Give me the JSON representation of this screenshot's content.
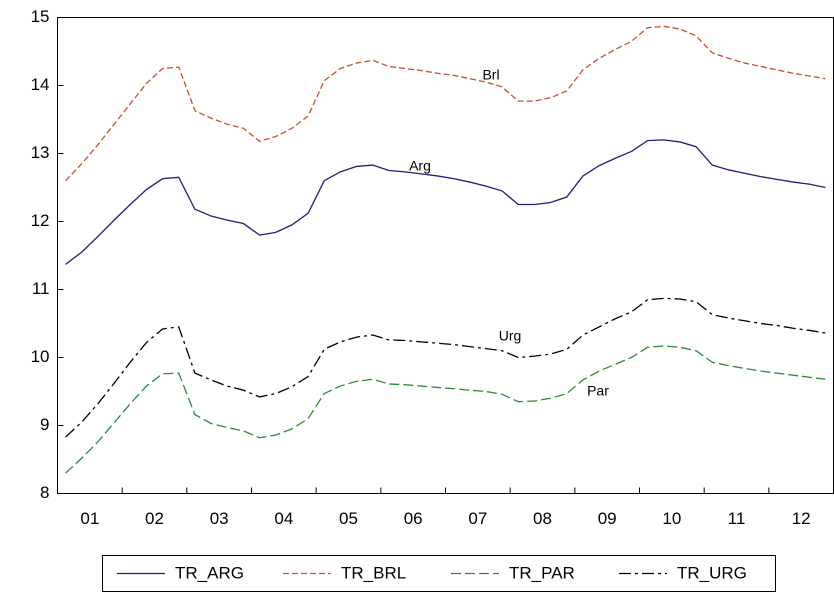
{
  "chart_data": {
    "type": "line",
    "categories": [
      null,
      "01",
      null,
      null,
      null,
      "02",
      null,
      null,
      null,
      "03",
      null,
      null,
      null,
      "04",
      null,
      null,
      null,
      "05",
      null,
      null,
      null,
      "06",
      null,
      null,
      null,
      "07",
      null,
      null,
      null,
      "08",
      null,
      null,
      null,
      "09",
      null,
      null,
      null,
      "10",
      null,
      null,
      null,
      "11",
      null,
      null,
      null,
      "12",
      null,
      null
    ],
    "series": [
      {
        "name": "TR_ARG",
        "color": "#1f1f78",
        "values": [
          11.37,
          11.55,
          11.78,
          12.02,
          12.25,
          12.47,
          12.63,
          12.65,
          12.18,
          12.08,
          12.02,
          11.97,
          11.8,
          11.84,
          11.95,
          12.12,
          12.6,
          12.73,
          12.81,
          12.83,
          12.75,
          12.73,
          12.7,
          12.67,
          12.63,
          12.58,
          12.52,
          12.45,
          12.25,
          12.25,
          12.28,
          12.36,
          12.67,
          12.82,
          12.93,
          13.03,
          13.19,
          13.2,
          13.17,
          13.1,
          12.83,
          12.76,
          12.71,
          12.66,
          12.62,
          12.58,
          12.55,
          12.5
        ]
      },
      {
        "name": "TR_BRL",
        "color": "#c8502a",
        "values": [
          12.6,
          12.85,
          13.13,
          13.43,
          13.73,
          14.03,
          14.25,
          14.27,
          13.63,
          13.52,
          13.43,
          13.37,
          13.18,
          13.25,
          13.37,
          13.55,
          14.07,
          14.25,
          14.33,
          14.37,
          14.28,
          14.25,
          14.22,
          14.18,
          14.15,
          14.1,
          14.05,
          13.98,
          13.77,
          13.77,
          13.82,
          13.92,
          14.23,
          14.4,
          14.53,
          14.65,
          14.85,
          14.87,
          14.83,
          14.73,
          14.48,
          14.4,
          14.33,
          14.28,
          14.23,
          14.18,
          14.14,
          14.1
        ]
      },
      {
        "name": "TR_PAR",
        "color": "#2e8b3a",
        "values": [
          8.3,
          8.52,
          8.76,
          9.04,
          9.32,
          9.58,
          9.76,
          9.77,
          9.16,
          9.03,
          8.97,
          8.92,
          8.82,
          8.86,
          8.95,
          9.1,
          9.47,
          9.58,
          9.65,
          9.68,
          9.61,
          9.6,
          9.58,
          9.56,
          9.54,
          9.52,
          9.5,
          9.46,
          9.35,
          9.36,
          9.4,
          9.47,
          9.67,
          9.8,
          9.9,
          10.0,
          10.15,
          10.17,
          10.15,
          10.1,
          9.93,
          9.88,
          9.84,
          9.8,
          9.77,
          9.74,
          9.71,
          9.68
        ]
      },
      {
        "name": "TR_URG",
        "color": "#000000",
        "values": [
          8.83,
          9.05,
          9.32,
          9.62,
          9.93,
          10.22,
          10.42,
          10.45,
          9.77,
          9.67,
          9.58,
          9.52,
          9.42,
          9.47,
          9.57,
          9.72,
          10.12,
          10.23,
          10.3,
          10.33,
          10.26,
          10.25,
          10.23,
          10.21,
          10.19,
          10.16,
          10.13,
          10.1,
          10.0,
          10.02,
          10.05,
          10.12,
          10.33,
          10.45,
          10.57,
          10.67,
          10.85,
          10.87,
          10.86,
          10.82,
          10.63,
          10.58,
          10.54,
          10.5,
          10.47,
          10.43,
          10.4,
          10.36
        ]
      }
    ],
    "annotations": [
      "Brl",
      "Arg",
      "Urg",
      "Par"
    ],
    "ylim": [
      8,
      15
    ],
    "yticks": [
      8,
      9,
      10,
      11,
      12,
      13,
      14,
      15
    ],
    "grid": false
  }
}
